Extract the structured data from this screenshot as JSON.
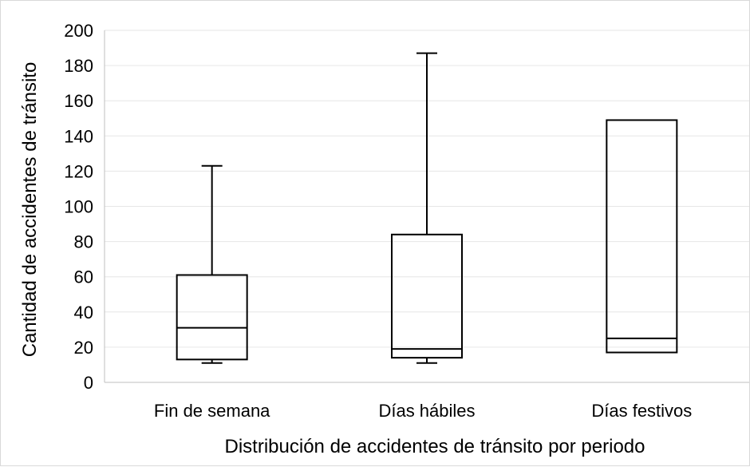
{
  "chart_data": {
    "type": "box",
    "title": "",
    "xlabel": "Distribución de accidentes de tránsito por periodo",
    "ylabel": "Cantidad de accidentes de tránsito",
    "ylim": [
      0,
      200
    ],
    "yticks": [
      "0",
      "20",
      "40",
      "60",
      "80",
      "100",
      "120",
      "140",
      "160",
      "180",
      "200"
    ],
    "grid": true,
    "legend": "none",
    "categories": [
      "Fin de semana",
      "Días hábiles",
      "Días festivos"
    ],
    "boxes": [
      {
        "category": "Fin de semana",
        "min": 11,
        "q1": 13,
        "median": 31,
        "q3": 61,
        "max": 123
      },
      {
        "category": "Días hábiles",
        "min": 11,
        "q1": 14,
        "median": 19,
        "q3": 84,
        "max": 187
      },
      {
        "category": "Días festivos",
        "min": 17,
        "q1": 17,
        "median": 25,
        "q3": 149,
        "max": 149
      }
    ],
    "colors": {
      "box": "#000000",
      "grid": "#e6e6e6",
      "axis": "#bfbfbf"
    }
  }
}
